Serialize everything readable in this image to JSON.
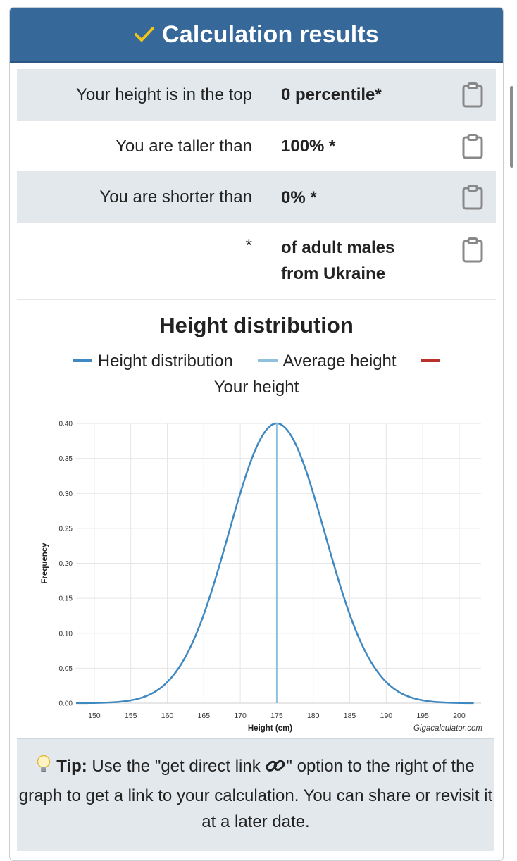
{
  "header": {
    "title": "Calculation results",
    "icon": "check-icon",
    "check_color": "#f0c419"
  },
  "results": [
    {
      "label": "Your height is in the top",
      "value": "0 percentile*"
    },
    {
      "label": "You are taller than",
      "value": "100% *"
    },
    {
      "label": "You are shorter than",
      "value": "0% *"
    },
    {
      "label": "*",
      "value_line1": "of adult males",
      "value_line2": "from Ukraine"
    }
  ],
  "chart_data": {
    "type": "line",
    "title": "Height distribution",
    "series": [
      {
        "name": "Height distribution",
        "color": "#3f88c0",
        "mean": 175,
        "sd": 6.6,
        "x_start": 147.5,
        "x_end": 202
      },
      {
        "name": "Average height",
        "color": "#8fc1df",
        "x": 175
      },
      {
        "name": "Your height",
        "color": "#b8342a"
      }
    ],
    "xlabel": "Height (cm)",
    "ylabel": "Frequency",
    "x_ticks": [
      "150",
      "155",
      "160",
      "165",
      "170",
      "175",
      "180",
      "185",
      "190",
      "195",
      "200"
    ],
    "y_ticks": [
      "0.00",
      "0.05",
      "0.10",
      "0.15",
      "0.20",
      "0.25",
      "0.30",
      "0.35",
      "0.40"
    ],
    "xlim": [
      147.5,
      203
    ],
    "ylim": [
      0,
      0.4
    ],
    "grid": true,
    "legend_position": "top",
    "credit": "Gigacalculator.com"
  },
  "tip": {
    "icon": "lightbulb-icon",
    "bold": "Tip:",
    "text_before": " Use the \"get direct link ",
    "link_icon": "link-icon",
    "text_after": "\" option to the right of the graph to get a link to your calculation. You can share or revisit it at a later date."
  }
}
